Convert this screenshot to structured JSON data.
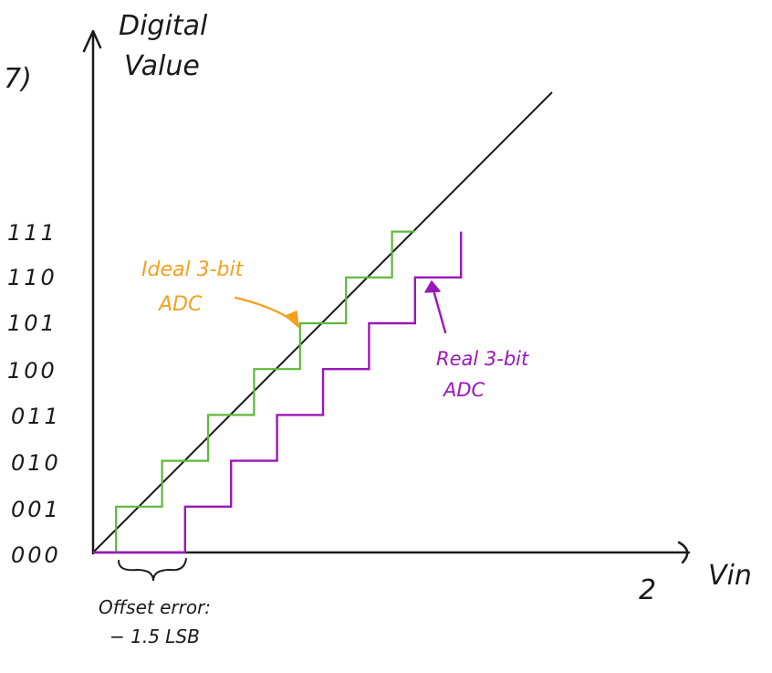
{
  "problem_number": "7)",
  "y_axis": {
    "title_line1": "Digital",
    "title_line2": "Value",
    "codes": [
      "000",
      "001",
      "010",
      "011",
      "100",
      "101",
      "110",
      "111"
    ]
  },
  "x_axis": {
    "title": "Vin",
    "max_label": "2"
  },
  "ideal_adc": {
    "label_line1": "Ideal 3-bit",
    "label_line2": "ADC",
    "color": "#5cb83a",
    "first_transition_lsb": 0.5
  },
  "real_adc": {
    "label_line1": "Real 3-bit",
    "label_line2": "ADC",
    "color": "#9a17b8",
    "first_transition_lsb": 2
  },
  "reference_line_color": "#1a1a1a",
  "offset_annotation": {
    "line1": "Offset error:",
    "line2": "− 1.5 LSB"
  }
}
